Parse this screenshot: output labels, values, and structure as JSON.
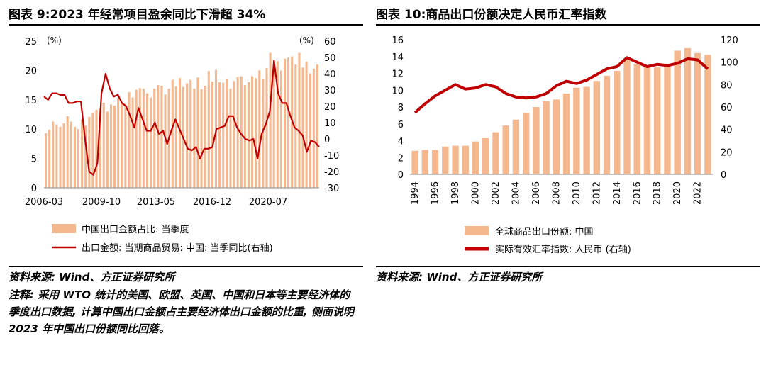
{
  "left": {
    "title": "图表 9:2023 年经常项目盈余同比下滑超 34%",
    "source": "资料来源: Wind、方正证券研究所",
    "note": "注释: 采用 WTO 统计的美国、欧盟、英国、中国和日本等主要经济体的季度出口数据, 计算中国出口金额占主要经济体出口金额的比重, 侧面说明 2023 年中国出口份额同比回落。"
  },
  "right": {
    "title": "图表 10:商品出口份额决定人民币汇率指数",
    "source": "资料来源: Wind、方正证券研究所"
  },
  "chart_data": [
    {
      "type": "bar+line",
      "title": "图表 9:2023 年经常项目盈余同比下滑超 34%",
      "left_axis": {
        "unit_label": "(%)",
        "ylim": [
          0,
          25
        ],
        "ticks": [
          0,
          5,
          10,
          15,
          20,
          25
        ]
      },
      "right_axis": {
        "unit_label": "(%)",
        "ylim": [
          -30,
          60
        ],
        "ticks": [
          -30,
          -20,
          -10,
          0,
          10,
          20,
          30,
          40,
          50,
          60
        ]
      },
      "x_tick_labels": [
        "2006-03",
        "2009-10",
        "2013-05",
        "2016-12",
        "2020-07"
      ],
      "series": [
        {
          "name": "中国出口金额占比: 当季度",
          "kind": "bar",
          "axis": "left",
          "color": "#f5b78e",
          "values": [
            9.3,
            9.9,
            11.3,
            10.8,
            10.4,
            11.0,
            12.2,
            11.3,
            10.4,
            10.0,
            11.6,
            10.6,
            12.1,
            12.8,
            13.3,
            13.5,
            14.5,
            13.0,
            14.2,
            14.0,
            15.3,
            14.6,
            14.3,
            16.3,
            15.4,
            16.7,
            17.0,
            16.9,
            16.1,
            15.4,
            16.9,
            17.5,
            17.4,
            15.9,
            16.9,
            18.4,
            17.3,
            18.7,
            17.2,
            17.8,
            18.4,
            16.9,
            18.8,
            16.8,
            17.4,
            19.9,
            18.1,
            20.1,
            18.0,
            17.9,
            18.5,
            16.9,
            18.2,
            18.9,
            19.0,
            17.5,
            18.0,
            19.0,
            18.7,
            20.0,
            18.5,
            20.4,
            23.0,
            21.8,
            21.6,
            20.0,
            22.0,
            22.2,
            22.4,
            21.0,
            23.0,
            20.5,
            21.5,
            19.5,
            20.3,
            21.0
          ]
        },
        {
          "name": "出口金额: 当期商品贸易: 中国: 当季同比(右轴)",
          "kind": "line",
          "axis": "right",
          "color": "#c00000",
          "values": [
            26,
            24,
            28,
            28,
            27,
            27,
            22,
            22,
            23,
            23,
            0,
            -20,
            -22,
            -15,
            28,
            40,
            31,
            26,
            27,
            22,
            20,
            14,
            7,
            19,
            12,
            5,
            5,
            10,
            3,
            5,
            -3,
            5,
            12,
            6,
            0,
            -6,
            -7,
            -5,
            -12,
            -6,
            -6,
            -5,
            6,
            7,
            8,
            14,
            14,
            7,
            3,
            0,
            -1,
            0,
            -12,
            3,
            9,
            17,
            48,
            28,
            22,
            22,
            14,
            7,
            5,
            2,
            -8,
            -1,
            -2,
            -5
          ]
        }
      ]
    },
    {
      "type": "bar+line",
      "title": "图表 10:商品出口份额决定人民币汇率指数",
      "left_axis": {
        "ylim": [
          0,
          16
        ],
        "ticks": [
          0,
          2,
          4,
          6,
          8,
          10,
          12,
          14,
          16
        ]
      },
      "right_axis": {
        "ylim": [
          0,
          120
        ],
        "ticks": [
          0,
          20,
          40,
          60,
          80,
          100,
          120
        ]
      },
      "categories": [
        "1994",
        "1995",
        "1996",
        "1997",
        "1998",
        "1999",
        "2000",
        "2001",
        "2002",
        "2003",
        "2004",
        "2005",
        "2006",
        "2007",
        "2008",
        "2009",
        "2010",
        "2011",
        "2012",
        "2013",
        "2014",
        "2015",
        "2016",
        "2017",
        "2018",
        "2019",
        "2020",
        "2021",
        "2022",
        "2023"
      ],
      "x_tick_labels": [
        "1994",
        "1996",
        "1998",
        "2000",
        "2002",
        "2004",
        "2006",
        "2008",
        "2010",
        "2012",
        "2014",
        "2016",
        "2018",
        "2020",
        "2022"
      ],
      "series": [
        {
          "name": "全球商品出口份额: 中国",
          "kind": "bar",
          "axis": "left",
          "color": "#f5b78e",
          "values": [
            2.8,
            2.9,
            2.9,
            3.3,
            3.4,
            3.4,
            3.9,
            4.3,
            5.0,
            5.8,
            6.5,
            7.3,
            8.0,
            8.7,
            8.9,
            9.6,
            10.3,
            10.4,
            11.1,
            11.7,
            12.3,
            13.8,
            13.1,
            12.8,
            12.7,
            13.1,
            14.7,
            15.0,
            14.4,
            14.2
          ]
        },
        {
          "name": "实际有效汇率指数: 人民币 (右轴)",
          "kind": "line",
          "axis": "right",
          "color": "#c00000",
          "values": [
            55,
            63,
            70,
            75,
            80,
            76,
            77,
            80,
            78,
            72,
            69,
            68,
            69,
            72,
            79,
            83,
            81,
            84,
            89,
            94,
            96,
            104,
            100,
            96,
            98,
            97,
            99,
            103,
            102,
            94
          ]
        }
      ]
    }
  ]
}
